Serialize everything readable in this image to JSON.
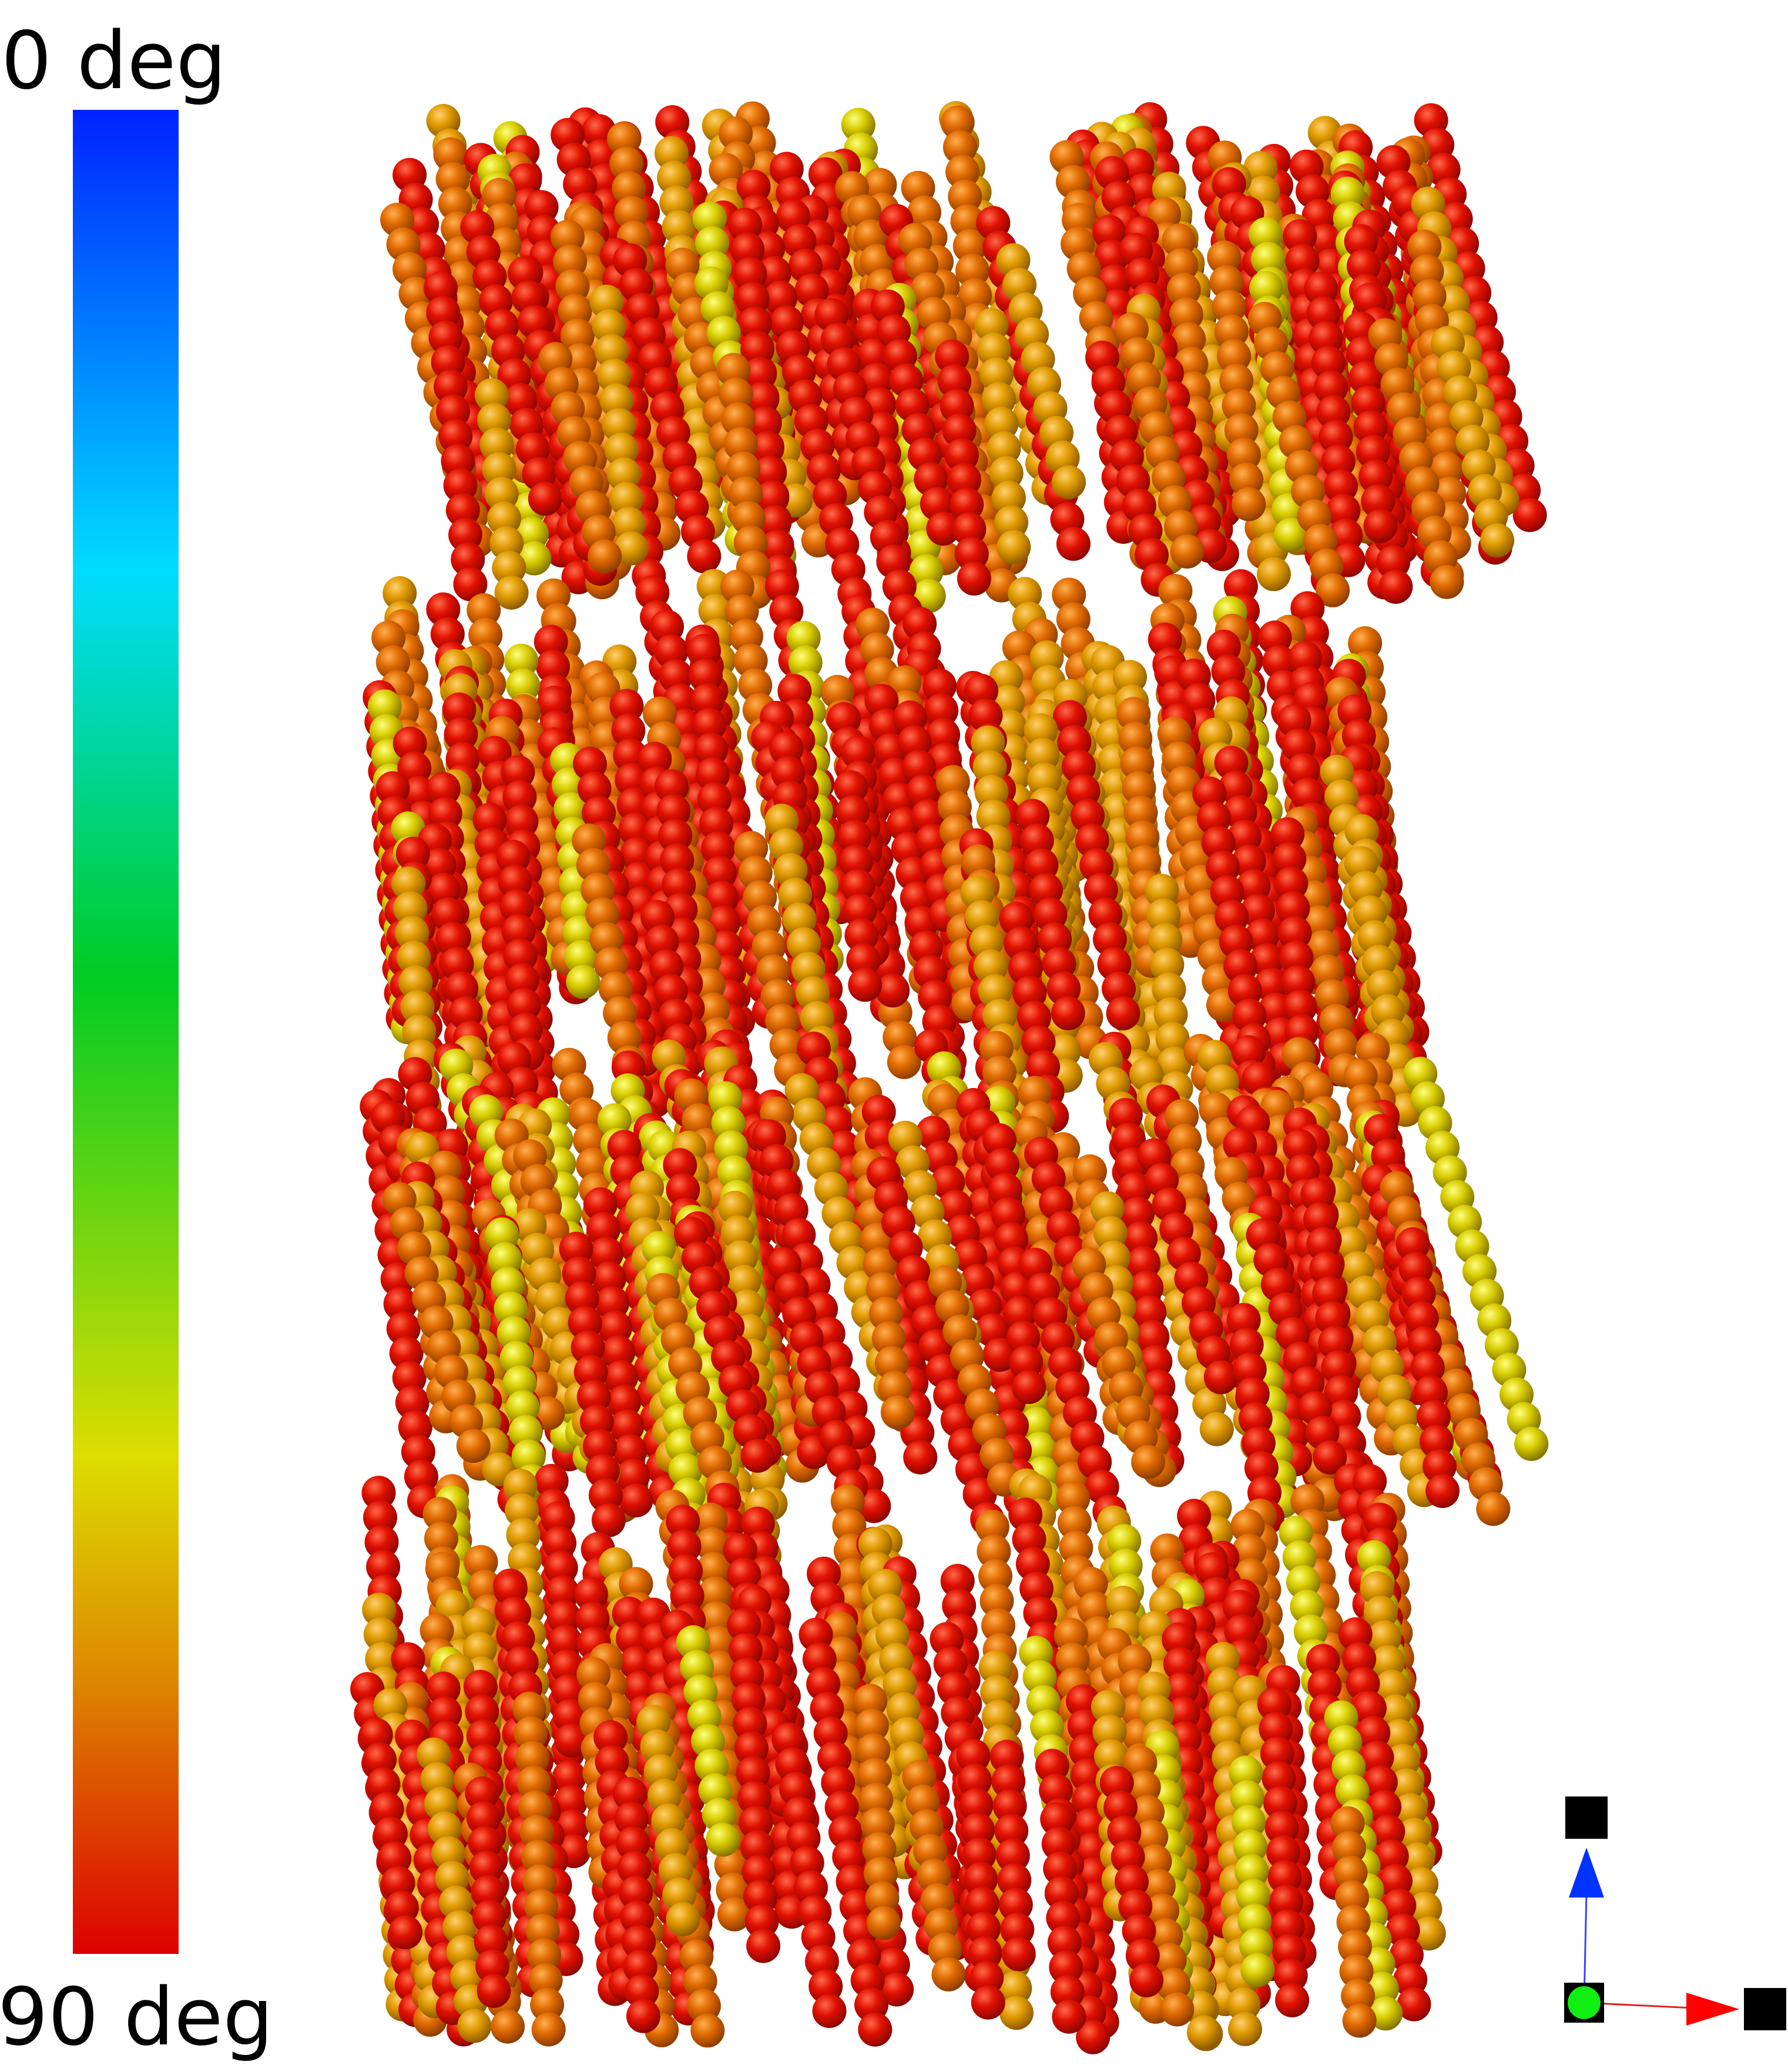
{
  "colorbar": {
    "top_label": "0 deg",
    "bottom_label": "90 deg"
  }
}
